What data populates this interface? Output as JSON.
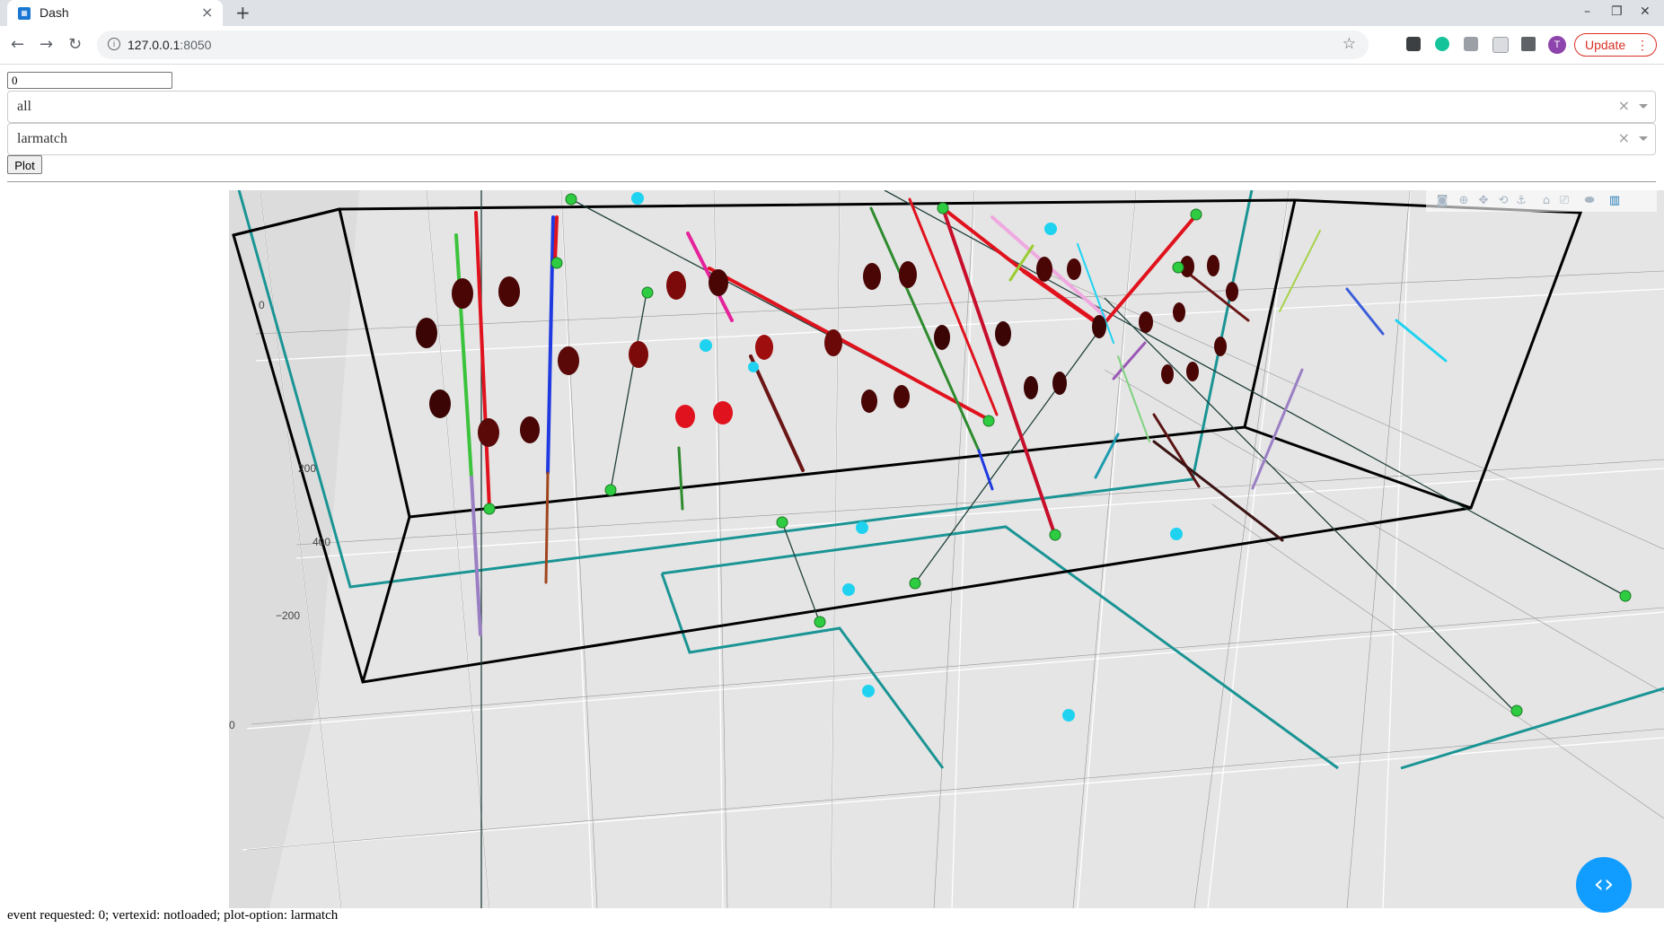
{
  "browser": {
    "tab_title": "Dash",
    "url_host": "127.0.0.1",
    "url_port": ":8050",
    "update_label": "Update",
    "profile_initial": "T"
  },
  "controls": {
    "event_input_value": "0",
    "dropdown_1_value": "all",
    "dropdown_2_value": "larmatch",
    "plot_button_label": "Plot"
  },
  "plot": {
    "tick_labels": [
      "0",
      "200",
      "400",
      "−200",
      "0"
    ],
    "modebar_icons": [
      "camera-icon",
      "zoom-icon",
      "pan-icon",
      "orbit-icon",
      "turntable-icon",
      "home-icon",
      "reset-camera-icon",
      "toggle-spike-icon",
      "plotly-logo-icon"
    ],
    "colors": {
      "background": "#e5e5e5",
      "detector_box": "#000000",
      "tpc_outline": "#1a9494",
      "vertex_green": "#2ecc40",
      "flash_cyan": "#1fd3f0",
      "pmt_dark": "#4a0505"
    }
  },
  "footer": {
    "status_text": "event requested: 0; vertexid: notloaded; plot-option: larmatch"
  }
}
